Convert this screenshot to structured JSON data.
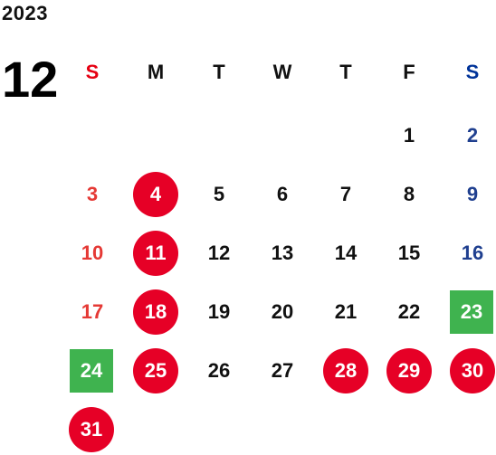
{
  "calendar": {
    "year": "2023",
    "month": "12",
    "weekdays": [
      "S",
      "M",
      "T",
      "W",
      "T",
      "F",
      "S"
    ],
    "days": [
      "1",
      "2",
      "3",
      "4",
      "5",
      "6",
      "7",
      "8",
      "9",
      "10",
      "11",
      "12",
      "13",
      "14",
      "15",
      "16",
      "17",
      "18",
      "19",
      "20",
      "21",
      "22",
      "23",
      "24",
      "25",
      "26",
      "27",
      "28",
      "29",
      "30",
      "31"
    ],
    "highlight_colors": {
      "holiday_circle": "#e60026",
      "green_box": "#3fb34f",
      "sunday_text": "#e53935",
      "saturday_text": "#1f3f8f"
    }
  }
}
